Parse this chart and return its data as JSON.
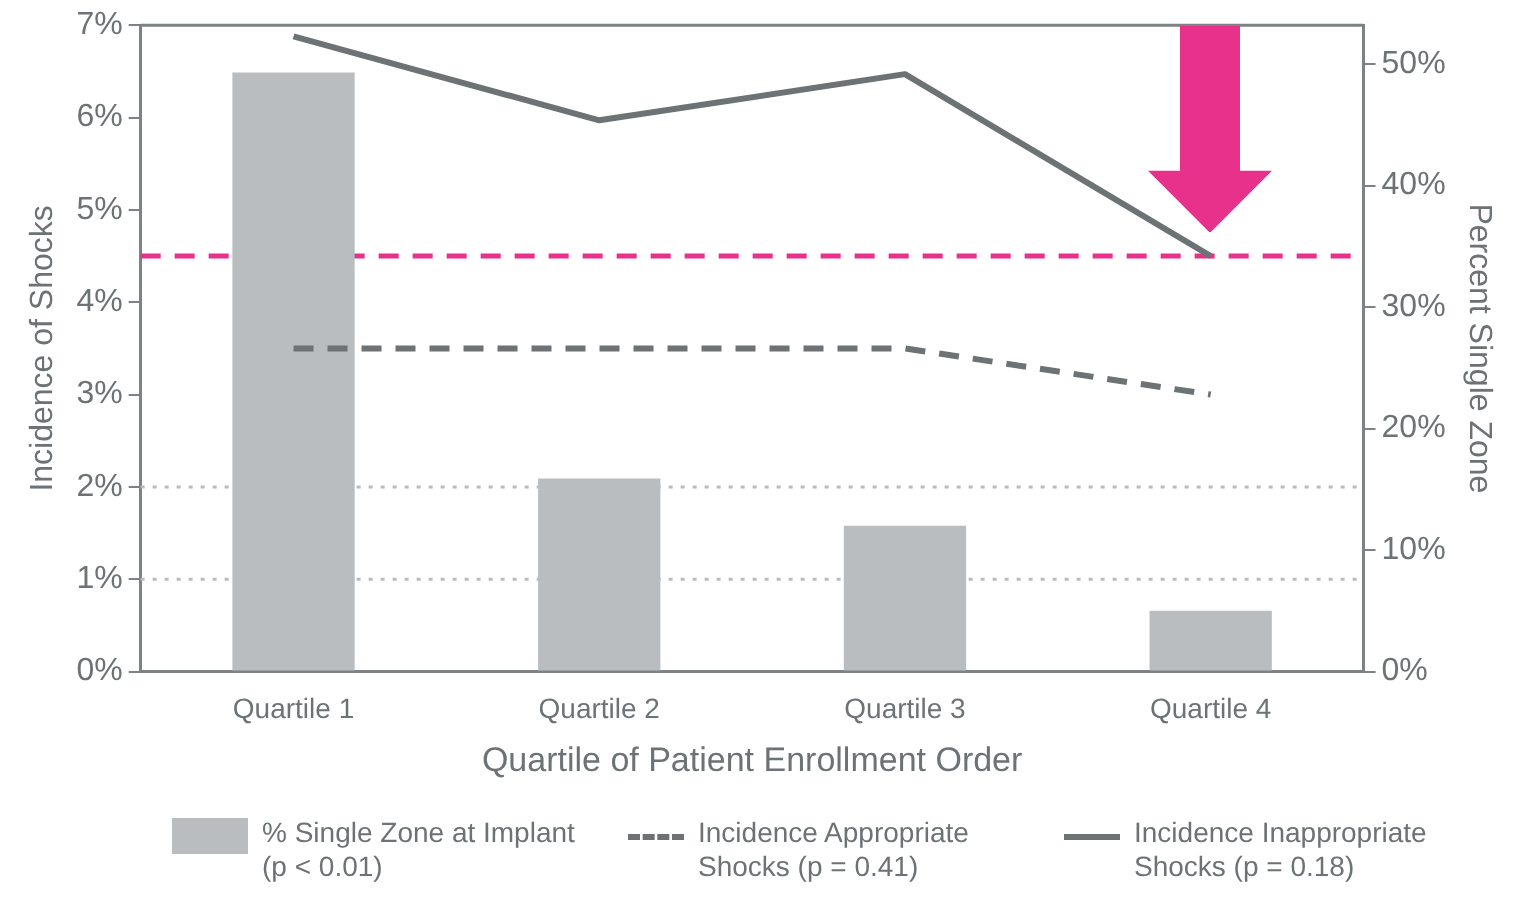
{
  "chart_data": {
    "type": "bar",
    "xlabel": "Quartile of Patient Enrollment Order",
    "ylabel": "Incidence of Shocks",
    "y2label": "Percent Single Zone",
    "categories": [
      "Quartile 1",
      "Quartile 2",
      "Quartile 3",
      "Quartile 4"
    ],
    "series": [
      {
        "name": "% Single Zone at Implant (p < 0.01)",
        "axis": "y2",
        "color": "#b9bdbf",
        "values": [
          49.3,
          15.9,
          12.0,
          5.0
        ]
      },
      {
        "name": "Incidence Appropriate Shocks (p = 0.41)",
        "type": "line",
        "line_style": "dashed",
        "color": "#6d7275",
        "values": [
          3.5,
          3.5,
          3.5,
          3.0
        ]
      },
      {
        "name": "Incidence Inappropriate Shocks (p = 0.18)",
        "type": "line",
        "line_style": "solid",
        "color": "#6d7275",
        "values": [
          6.88,
          5.97,
          6.47,
          4.5
        ]
      }
    ],
    "ylim": [
      0,
      7
    ],
    "yticks": [
      {
        "value": 0,
        "label": "0%"
      },
      {
        "value": 1,
        "label": "1%"
      },
      {
        "value": 2,
        "label": "2%"
      },
      {
        "value": 3,
        "label": "3%"
      },
      {
        "value": 4,
        "label": "4%"
      },
      {
        "value": 5,
        "label": "5%"
      },
      {
        "value": 6,
        "label": "6%"
      },
      {
        "value": 7,
        "label": "7%"
      }
    ],
    "y2lim": [
      0,
      53.2
    ],
    "y2ticks": [
      {
        "value": 0,
        "label": "0%"
      },
      {
        "value": 10,
        "label": "10%"
      },
      {
        "value": 20,
        "label": "20%"
      },
      {
        "value": 30,
        "label": "30%"
      },
      {
        "value": 40,
        "label": "40%"
      },
      {
        "value": 50,
        "label": "50%"
      }
    ],
    "ref_lines": [
      {
        "axis": "y",
        "value": 4.5,
        "color": "#e8318a",
        "line_style": "dashed"
      },
      {
        "axis": "y",
        "value": 1,
        "color": "#bbbbbb",
        "line_style": "dotted"
      },
      {
        "axis": "y",
        "value": 2,
        "color": "#bbbbbb",
        "line_style": "dotted"
      }
    ],
    "grid": false,
    "legend": "bottom",
    "marker": "none"
  }
}
